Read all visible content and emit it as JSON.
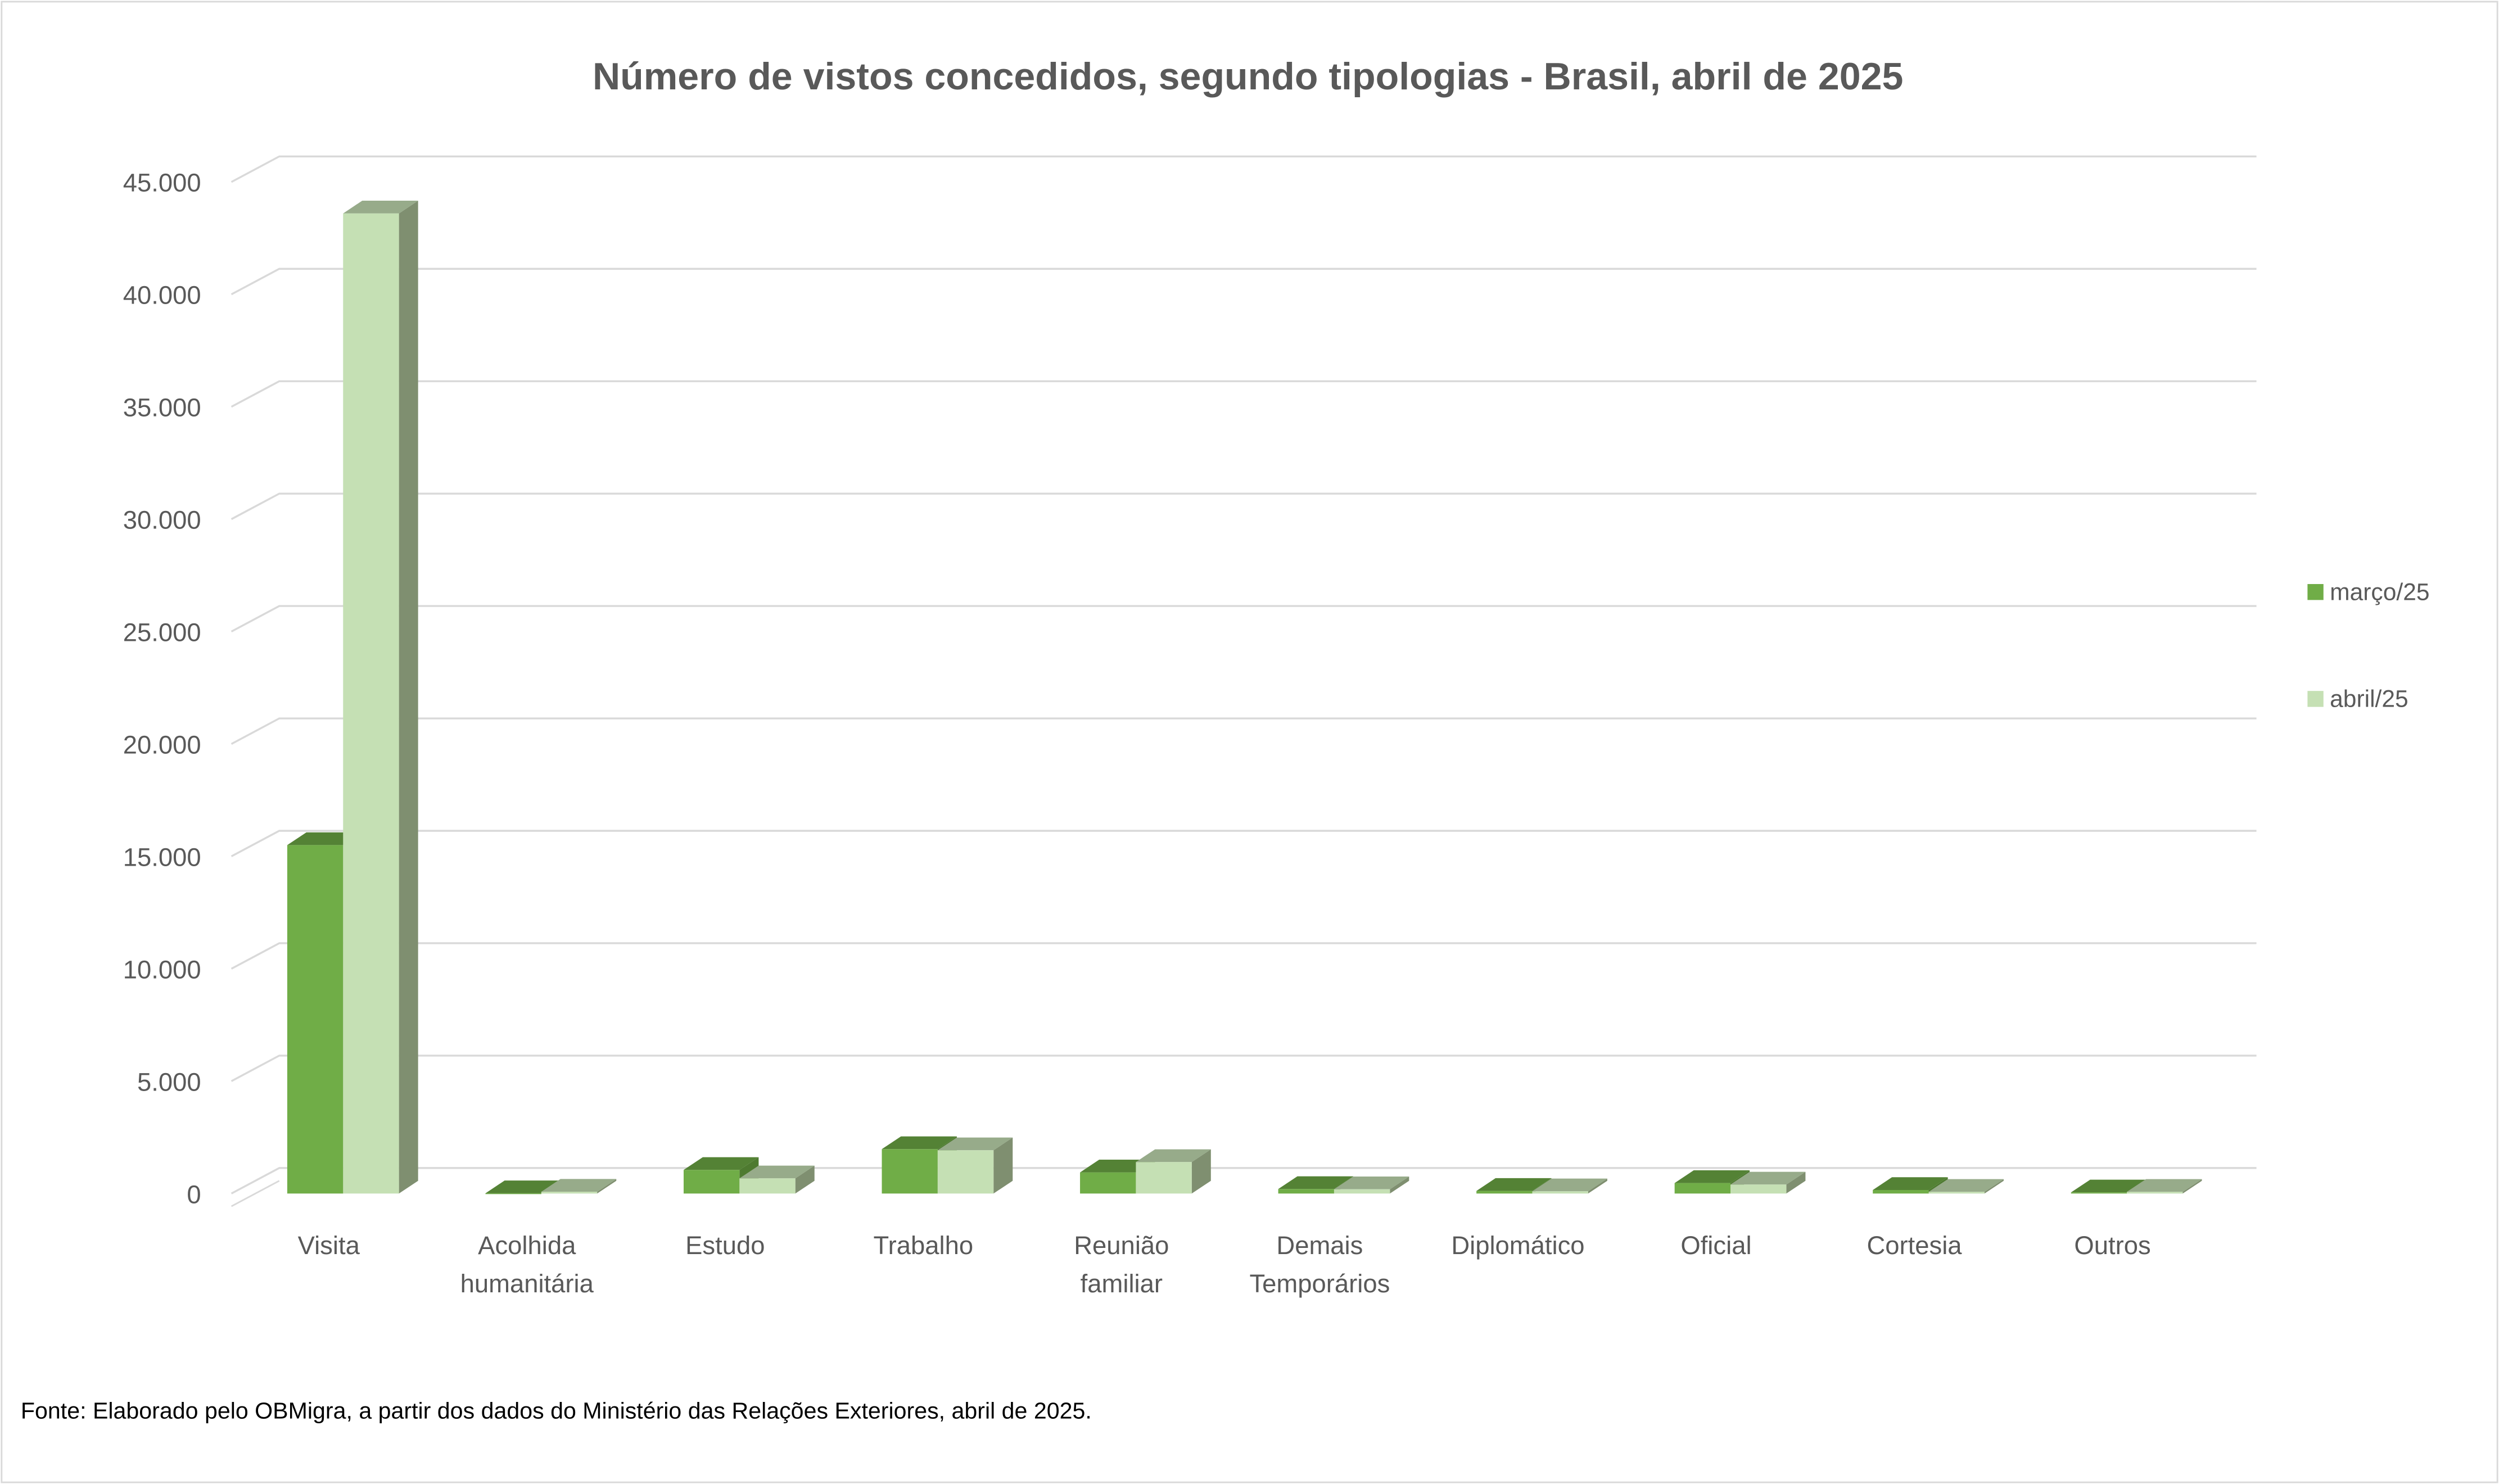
{
  "chart_data": {
    "type": "bar",
    "style": "3d-clustered-column",
    "title": "Número de vistos concedidos, segundo tipologias - Brasil, abril de 2025",
    "source_note": "Fonte: Elaborado pelo OBMigra, a partir dos dados do Ministério das Relações Exteriores, abril de 2025.",
    "categories": [
      [
        "Visita"
      ],
      [
        "Acolhida",
        "humanitária"
      ],
      [
        "Estudo"
      ],
      [
        "Trabalho"
      ],
      [
        "Reunião",
        "familiar"
      ],
      [
        "Demais",
        "Temporários"
      ],
      [
        "Diplomático"
      ],
      [
        "Oficial"
      ],
      [
        "Cortesia"
      ],
      [
        "Outros"
      ]
    ],
    "series": [
      {
        "name": "março/25",
        "values": [
          15500,
          10,
          1050,
          1975,
          940,
          200,
          117,
          467,
          158,
          50
        ],
        "color": "#70AD47",
        "top_color": "#548235",
        "side_color": "#4E7A30"
      },
      {
        "name": "abril/25",
        "values": [
          43600,
          80,
          675,
          1925,
          1400,
          190,
          100,
          400,
          75,
          75
        ],
        "color": "#C5E0B4",
        "top_color": "#97AB8A",
        "side_color": "#7F8F70"
      }
    ],
    "ylim": [
      0,
      45000
    ],
    "yticks": [
      0,
      5000,
      10000,
      15000,
      20000,
      25000,
      30000,
      35000,
      40000,
      45000
    ],
    "ytick_labels": [
      "0",
      "5.000",
      "10.000",
      "15.000",
      "20.000",
      "25.000",
      "30.000",
      "35.000",
      "40.000",
      "45.000"
    ],
    "grid": true,
    "legend_position": "right"
  }
}
